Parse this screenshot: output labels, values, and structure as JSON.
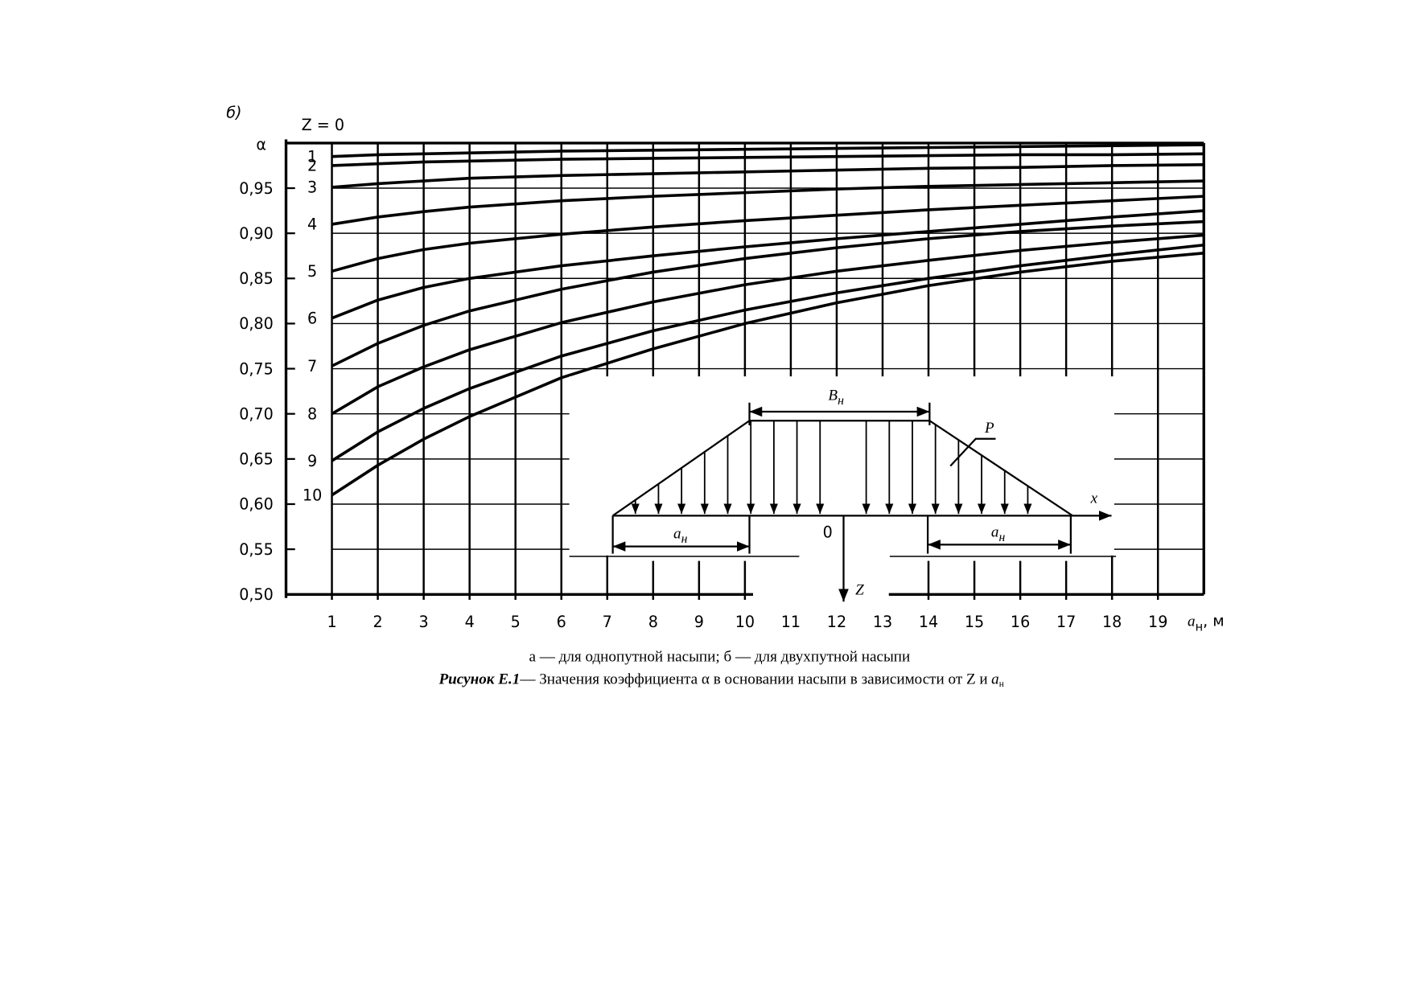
{
  "panel_label": "б)",
  "chart_data": {
    "type": "line",
    "legend_title": "Z = 0",
    "ylabel": "α",
    "xlabel": {
      "symbol": "a",
      "subscript": "н",
      "rest": ", м"
    },
    "x": [
      1,
      2,
      3,
      4,
      6,
      8,
      10,
      12,
      14,
      16,
      18,
      20
    ],
    "series": [
      {
        "name": "1",
        "color": "#000000",
        "values": [
          0.985,
          0.987,
          0.988,
          0.989,
          0.991,
          0.992,
          0.993,
          0.994,
          0.995,
          0.996,
          0.997,
          0.998
        ]
      },
      {
        "name": "2",
        "color": "#000000",
        "values": [
          0.975,
          0.977,
          0.979,
          0.98,
          0.982,
          0.983,
          0.984,
          0.985,
          0.986,
          0.987,
          0.987,
          0.988
        ]
      },
      {
        "name": "3",
        "color": "#000000",
        "values": [
          0.951,
          0.955,
          0.958,
          0.961,
          0.964,
          0.966,
          0.968,
          0.97,
          0.972,
          0.973,
          0.975,
          0.976
        ]
      },
      {
        "name": "4",
        "color": "#000000",
        "values": [
          0.91,
          0.918,
          0.924,
          0.929,
          0.936,
          0.941,
          0.945,
          0.949,
          0.952,
          0.954,
          0.956,
          0.958
        ]
      },
      {
        "name": "5",
        "color": "#000000",
        "values": [
          0.858,
          0.872,
          0.882,
          0.889,
          0.899,
          0.907,
          0.914,
          0.92,
          0.926,
          0.931,
          0.936,
          0.941
        ]
      },
      {
        "name": "6",
        "color": "#000000",
        "values": [
          0.806,
          0.826,
          0.84,
          0.85,
          0.864,
          0.875,
          0.885,
          0.894,
          0.902,
          0.91,
          0.918,
          0.925
        ]
      },
      {
        "name": "7",
        "color": "#000000",
        "values": [
          0.753,
          0.778,
          0.798,
          0.814,
          0.838,
          0.857,
          0.872,
          0.884,
          0.894,
          0.902,
          0.908,
          0.913
        ]
      },
      {
        "name": "8",
        "color": "#000000",
        "values": [
          0.7,
          0.73,
          0.752,
          0.771,
          0.801,
          0.824,
          0.843,
          0.858,
          0.87,
          0.881,
          0.89,
          0.898
        ]
      },
      {
        "name": "9",
        "color": "#000000",
        "values": [
          0.648,
          0.68,
          0.706,
          0.728,
          0.764,
          0.792,
          0.815,
          0.834,
          0.85,
          0.864,
          0.876,
          0.887
        ]
      },
      {
        "name": "10",
        "color": "#000000",
        "values": [
          0.61,
          0.643,
          0.672,
          0.697,
          0.74,
          0.772,
          0.8,
          0.823,
          0.842,
          0.857,
          0.869,
          0.878
        ]
      }
    ],
    "xlim": [
      0,
      20
    ],
    "ylim": [
      0.5,
      1.0
    ],
    "xticks": [
      1,
      2,
      3,
      4,
      5,
      6,
      7,
      8,
      9,
      10,
      11,
      12,
      13,
      14,
      15,
      16,
      17,
      18,
      19
    ],
    "yticks": [
      {
        "value": 0.5,
        "label": "0,50"
      },
      {
        "value": 0.55,
        "label": "0,55"
      },
      {
        "value": 0.6,
        "label": "0,60"
      },
      {
        "value": 0.65,
        "label": "0,65"
      },
      {
        "value": 0.7,
        "label": "0,70"
      },
      {
        "value": 0.75,
        "label": "0,75"
      },
      {
        "value": 0.8,
        "label": "0,80"
      },
      {
        "value": 0.85,
        "label": "0,85"
      },
      {
        "value": 0.9,
        "label": "0,90"
      },
      {
        "value": 0.95,
        "label": "0,95"
      }
    ],
    "grid": true
  },
  "inset": {
    "width_label": {
      "symbol": "B",
      "subscript": "н"
    },
    "load_label": "P",
    "x_axis": "x",
    "origin": "0",
    "z_axis": "Z",
    "left_label": {
      "symbol": "a",
      "subscript": "н"
    },
    "right_label": {
      "symbol": "a",
      "subscript": "н"
    }
  },
  "caption": {
    "subtitle": "а — для однопутной насыпи; б — для двухпутной насыпи",
    "figure_no": "Рисунок Е.1",
    "text": "— Значения коэффициента α в основании насыпи в зависимости от Z и",
    "symbol": "a",
    "subscript": "н"
  }
}
